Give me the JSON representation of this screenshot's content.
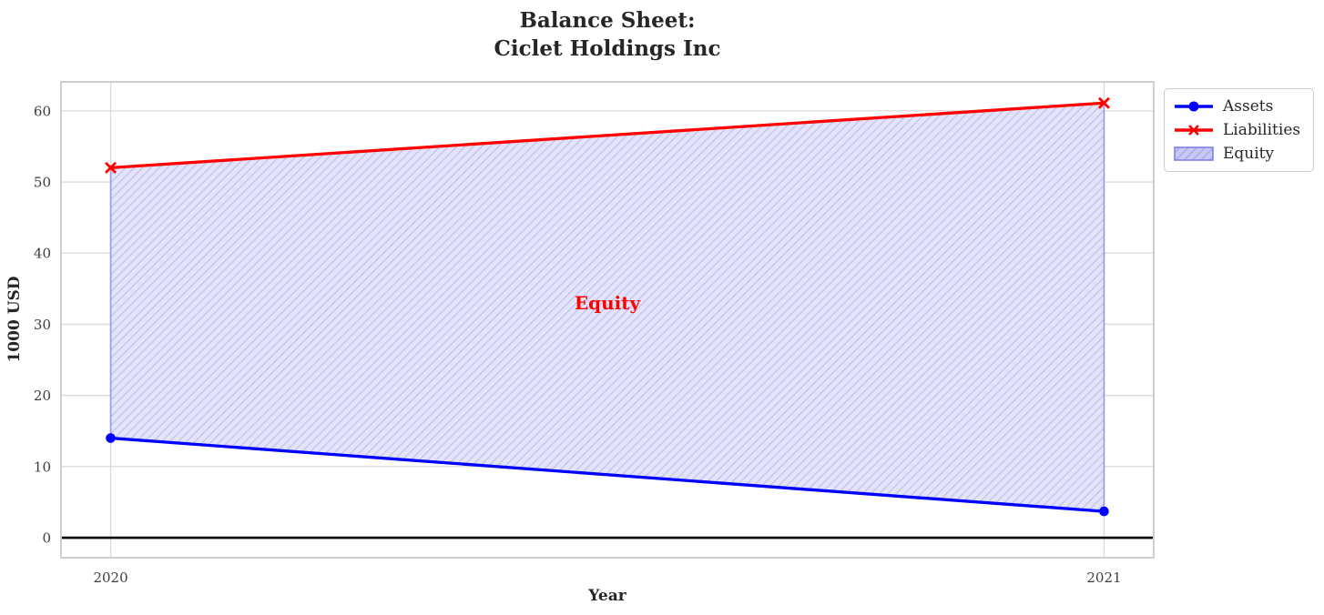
{
  "chart_data": {
    "type": "line",
    "title": "Balance Sheet:\nCiclet Holdings Inc",
    "title_line1": "Balance Sheet:",
    "title_line2": "Ciclet Holdings Inc",
    "xlabel": "Year",
    "ylabel": "1000 USD",
    "x": [
      2020,
      2021
    ],
    "series": [
      {
        "name": "Assets",
        "values": [
          14,
          3.7
        ],
        "color": "#0000ff",
        "marker": "circle"
      },
      {
        "name": "Liabilities",
        "values": [
          52,
          61.1
        ],
        "color": "#ff0000",
        "marker": "x"
      }
    ],
    "fill_between": {
      "label": "Equity",
      "between": [
        "Assets",
        "Liabilities"
      ],
      "fill_color": "#e3e3f9",
      "hatch_color": "#bdbdee",
      "edge_color": "#9898e4",
      "legend_fill_color": "#c8c8f4",
      "legend_hatch_color": "#a0a0ec",
      "legend_edge_color": "#8080e4",
      "hatch_style": "diagonal"
    },
    "annotation": {
      "text": "Equity",
      "x": 2020.5,
      "y": 33,
      "color": "#ff0000"
    },
    "zero_line": {
      "y": 0,
      "color": "#000000"
    },
    "xlim": [
      2019.95,
      2021.05
    ],
    "ylim": [
      -2.81,
      64.07
    ],
    "xticks": [
      "2020",
      "2021"
    ],
    "xtick_values": [
      2020,
      2021
    ],
    "yticks": [
      "0",
      "10",
      "20",
      "30",
      "40",
      "50",
      "60"
    ],
    "ytick_values": [
      0,
      10,
      20,
      30,
      40,
      50,
      60
    ],
    "grid": true,
    "legend_position": "upper-right-outside",
    "legend_entries": [
      "Assets",
      "Liabilities",
      "Equity"
    ]
  }
}
